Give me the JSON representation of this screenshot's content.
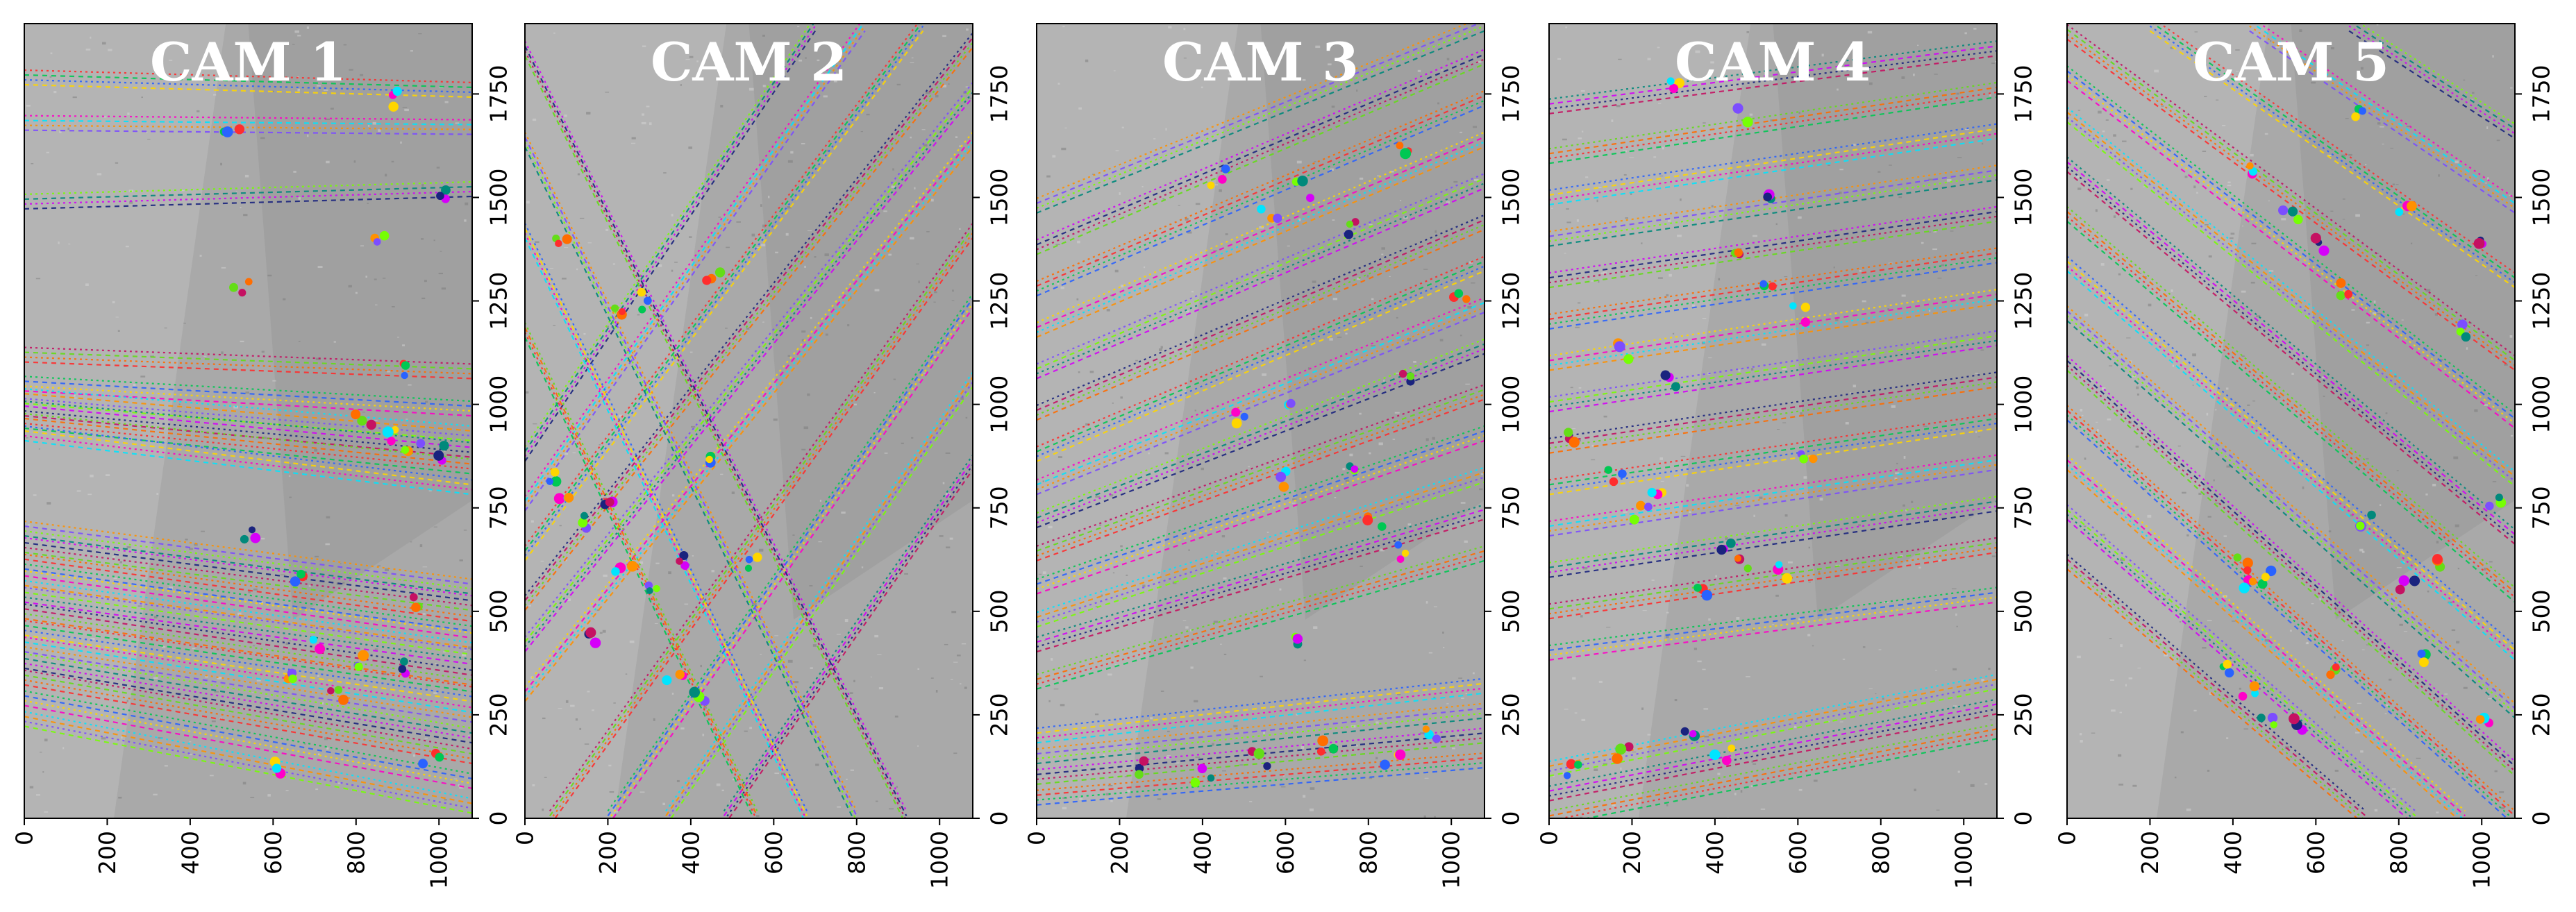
{
  "chart_data": [
    {
      "type": "scatter",
      "title": "CAM 1",
      "xlim": [
        0,
        1080
      ],
      "ylim": [
        0,
        1920
      ],
      "xticks": [
        0,
        200,
        400,
        600,
        800,
        1000
      ],
      "yticks": [
        0,
        250,
        500,
        750,
        1000,
        1250,
        1500,
        1750
      ],
      "tracks": [
        {
          "x0": 0,
          "y0": 1790,
          "x1": 1080,
          "y1": 1760
        },
        {
          "x0": 0,
          "y0": 1680,
          "x1": 1080,
          "y1": 1670
        },
        {
          "x0": 0,
          "y0": 1490,
          "x1": 1080,
          "y1": 1520
        },
        {
          "x0": 0,
          "y0": 1120,
          "x1": 1080,
          "y1": 1080
        },
        {
          "x0": 0,
          "y0": 1050,
          "x1": 1080,
          "y1": 990
        },
        {
          "x0": 0,
          "y0": 1020,
          "x1": 1080,
          "y1": 930
        },
        {
          "x0": 0,
          "y0": 990,
          "x1": 1080,
          "y1": 890
        },
        {
          "x0": 0,
          "y0": 960,
          "x1": 1080,
          "y1": 850
        },
        {
          "x0": 0,
          "y0": 930,
          "x1": 1080,
          "y1": 800
        },
        {
          "x0": 0,
          "y0": 700,
          "x1": 1080,
          "y1": 560
        },
        {
          "x0": 0,
          "y0": 660,
          "x1": 1080,
          "y1": 520
        },
        {
          "x0": 0,
          "y0": 620,
          "x1": 1080,
          "y1": 470
        },
        {
          "x0": 0,
          "y0": 580,
          "x1": 1080,
          "y1": 430
        },
        {
          "x0": 0,
          "y0": 540,
          "x1": 1080,
          "y1": 390
        },
        {
          "x0": 0,
          "y0": 500,
          "x1": 1080,
          "y1": 340
        },
        {
          "x0": 0,
          "y0": 460,
          "x1": 1080,
          "y1": 300
        },
        {
          "x0": 0,
          "y0": 420,
          "x1": 1080,
          "y1": 250
        },
        {
          "x0": 0,
          "y0": 380,
          "x1": 1080,
          "y1": 200
        },
        {
          "x0": 0,
          "y0": 340,
          "x1": 1080,
          "y1": 150
        },
        {
          "x0": 0,
          "y0": 290,
          "x1": 1080,
          "y1": 90
        },
        {
          "x0": 0,
          "y0": 240,
          "x1": 1080,
          "y1": 30
        }
      ],
      "points": [
        {
          "x": 500,
          "y": 1680
        },
        {
          "x": 880,
          "y": 1740
        },
        {
          "x": 860,
          "y": 1400
        },
        {
          "x": 1020,
          "y": 1500
        },
        {
          "x": 520,
          "y": 1290
        },
        {
          "x": 900,
          "y": 1080
        },
        {
          "x": 880,
          "y": 920
        },
        {
          "x": 940,
          "y": 900
        },
        {
          "x": 1000,
          "y": 880
        },
        {
          "x": 820,
          "y": 960
        },
        {
          "x": 660,
          "y": 590
        },
        {
          "x": 700,
          "y": 420
        },
        {
          "x": 800,
          "y": 380
        },
        {
          "x": 900,
          "y": 360
        },
        {
          "x": 760,
          "y": 300
        },
        {
          "x": 980,
          "y": 140
        },
        {
          "x": 600,
          "y": 130
        },
        {
          "x": 640,
          "y": 340
        },
        {
          "x": 540,
          "y": 690
        },
        {
          "x": 960,
          "y": 520
        }
      ]
    },
    {
      "type": "scatter",
      "title": "CAM 2",
      "xlim": [
        0,
        1080
      ],
      "ylim": [
        0,
        1920
      ],
      "xticks": [
        0,
        200,
        400,
        600,
        800,
        1000
      ],
      "yticks": [
        0,
        250,
        500,
        750,
        1000,
        1250,
        1500,
        1750
      ],
      "tracks": [
        {
          "x0": 0,
          "y0": 300,
          "x1": 1080,
          "y1": 1640
        },
        {
          "x0": 0,
          "y0": 420,
          "x1": 1080,
          "y1": 1760
        },
        {
          "x0": 0,
          "y0": 520,
          "x1": 1080,
          "y1": 1880
        },
        {
          "x0": 0,
          "y0": 640,
          "x1": 960,
          "y1": 1920
        },
        {
          "x0": 0,
          "y0": 760,
          "x1": 820,
          "y1": 1920
        },
        {
          "x0": 0,
          "y0": 880,
          "x1": 700,
          "y1": 1920
        },
        {
          "x0": 60,
          "y0": 0,
          "x1": 1080,
          "y1": 1420
        },
        {
          "x0": 200,
          "y0": 0,
          "x1": 1080,
          "y1": 1250
        },
        {
          "x0": 340,
          "y0": 0,
          "x1": 1080,
          "y1": 1060
        },
        {
          "x0": 480,
          "y0": 0,
          "x1": 1080,
          "y1": 860
        },
        {
          "x0": 0,
          "y0": 1180,
          "x1": 560,
          "y1": 0
        },
        {
          "x0": 0,
          "y0": 1420,
          "x1": 680,
          "y1": 0
        },
        {
          "x0": 0,
          "y0": 1640,
          "x1": 800,
          "y1": 0
        },
        {
          "x0": 0,
          "y0": 1860,
          "x1": 920,
          "y1": 0
        }
      ],
      "points": [
        {
          "x": 60,
          "y": 820
        },
        {
          "x": 100,
          "y": 780
        },
        {
          "x": 140,
          "y": 720
        },
        {
          "x": 200,
          "y": 760
        },
        {
          "x": 230,
          "y": 1230
        },
        {
          "x": 300,
          "y": 1250
        },
        {
          "x": 240,
          "y": 600
        },
        {
          "x": 320,
          "y": 560
        },
        {
          "x": 380,
          "y": 620
        },
        {
          "x": 460,
          "y": 1300
        },
        {
          "x": 540,
          "y": 620
        },
        {
          "x": 360,
          "y": 330
        },
        {
          "x": 420,
          "y": 300
        },
        {
          "x": 160,
          "y": 440
        },
        {
          "x": 80,
          "y": 1400
        },
        {
          "x": 440,
          "y": 860
        }
      ]
    },
    {
      "type": "scatter",
      "title": "CAM 3",
      "xlim": [
        0,
        1080
      ],
      "ylim": [
        0,
        1920
      ],
      "xticks": [
        0,
        200,
        400,
        600,
        800,
        1000
      ],
      "yticks": [
        0,
        250,
        500,
        750,
        1000,
        1250,
        1500,
        1750
      ],
      "tracks": [
        {
          "x0": 0,
          "y0": 1480,
          "x1": 1080,
          "y1": 1920
        },
        {
          "x0": 0,
          "y0": 1380,
          "x1": 1080,
          "y1": 1840
        },
        {
          "x0": 0,
          "y0": 1280,
          "x1": 1080,
          "y1": 1740
        },
        {
          "x0": 0,
          "y0": 1180,
          "x1": 1080,
          "y1": 1640
        },
        {
          "x0": 0,
          "y0": 1080,
          "x1": 1080,
          "y1": 1540
        },
        {
          "x0": 0,
          "y0": 980,
          "x1": 1080,
          "y1": 1440
        },
        {
          "x0": 0,
          "y0": 880,
          "x1": 1080,
          "y1": 1340
        },
        {
          "x0": 0,
          "y0": 800,
          "x1": 1080,
          "y1": 1240
        },
        {
          "x0": 0,
          "y0": 720,
          "x1": 1080,
          "y1": 1140
        },
        {
          "x0": 0,
          "y0": 640,
          "x1": 1080,
          "y1": 1030
        },
        {
          "x0": 0,
          "y0": 560,
          "x1": 1080,
          "y1": 930
        },
        {
          "x0": 0,
          "y0": 480,
          "x1": 1080,
          "y1": 830
        },
        {
          "x0": 0,
          "y0": 420,
          "x1": 1080,
          "y1": 740
        },
        {
          "x0": 0,
          "y0": 330,
          "x1": 1080,
          "y1": 640
        },
        {
          "x0": 0,
          "y0": 200,
          "x1": 1080,
          "y1": 320
        },
        {
          "x0": 0,
          "y0": 150,
          "x1": 1080,
          "y1": 260
        },
        {
          "x0": 0,
          "y0": 100,
          "x1": 1080,
          "y1": 200
        },
        {
          "x0": 0,
          "y0": 50,
          "x1": 1080,
          "y1": 140
        }
      ],
      "points": [
        {
          "x": 440,
          "y": 1550
        },
        {
          "x": 560,
          "y": 1460
        },
        {
          "x": 640,
          "y": 1520
        },
        {
          "x": 760,
          "y": 1430
        },
        {
          "x": 880,
          "y": 1620
        },
        {
          "x": 500,
          "y": 960
        },
        {
          "x": 620,
          "y": 1000
        },
        {
          "x": 760,
          "y": 860
        },
        {
          "x": 900,
          "y": 1060
        },
        {
          "x": 820,
          "y": 720
        },
        {
          "x": 880,
          "y": 640
        },
        {
          "x": 600,
          "y": 820
        },
        {
          "x": 620,
          "y": 430
        },
        {
          "x": 540,
          "y": 140
        },
        {
          "x": 700,
          "y": 180
        },
        {
          "x": 860,
          "y": 140
        },
        {
          "x": 960,
          "y": 200
        },
        {
          "x": 400,
          "y": 100
        },
        {
          "x": 260,
          "y": 120
        },
        {
          "x": 1020,
          "y": 1250
        }
      ]
    },
    {
      "type": "scatter",
      "title": "CAM 4",
      "xlim": [
        0,
        1080
      ],
      "ylim": [
        0,
        1920
      ],
      "xticks": [
        0,
        200,
        400,
        600,
        800,
        1000
      ],
      "yticks": [
        0,
        250,
        500,
        750,
        1000,
        1250,
        1500,
        1750
      ],
      "tracks": [
        {
          "x0": 0,
          "y0": 1720,
          "x1": 1080,
          "y1": 1860
        },
        {
          "x0": 0,
          "y0": 1600,
          "x1": 1080,
          "y1": 1760
        },
        {
          "x0": 0,
          "y0": 1500,
          "x1": 1080,
          "y1": 1660
        },
        {
          "x0": 0,
          "y0": 1400,
          "x1": 1080,
          "y1": 1560
        },
        {
          "x0": 0,
          "y0": 1300,
          "x1": 1080,
          "y1": 1460
        },
        {
          "x0": 0,
          "y0": 1200,
          "x1": 1080,
          "y1": 1360
        },
        {
          "x0": 0,
          "y0": 1100,
          "x1": 1080,
          "y1": 1260
        },
        {
          "x0": 0,
          "y0": 1000,
          "x1": 1080,
          "y1": 1160
        },
        {
          "x0": 0,
          "y0": 900,
          "x1": 1080,
          "y1": 1060
        },
        {
          "x0": 0,
          "y0": 800,
          "x1": 1080,
          "y1": 960
        },
        {
          "x0": 0,
          "y0": 700,
          "x1": 1080,
          "y1": 860
        },
        {
          "x0": 0,
          "y0": 600,
          "x1": 1080,
          "y1": 760
        },
        {
          "x0": 0,
          "y0": 500,
          "x1": 1080,
          "y1": 660
        },
        {
          "x0": 0,
          "y0": 400,
          "x1": 1080,
          "y1": 540
        },
        {
          "x0": 0,
          "y0": 120,
          "x1": 1080,
          "y1": 330
        },
        {
          "x0": 0,
          "y0": 60,
          "x1": 1080,
          "y1": 270
        },
        {
          "x0": 0,
          "y0": 0,
          "x1": 1080,
          "y1": 210
        }
      ],
      "points": [
        {
          "x": 300,
          "y": 1780
        },
        {
          "x": 460,
          "y": 1700
        },
        {
          "x": 540,
          "y": 1500
        },
        {
          "x": 440,
          "y": 1380
        },
        {
          "x": 520,
          "y": 1300
        },
        {
          "x": 600,
          "y": 1220
        },
        {
          "x": 180,
          "y": 1130
        },
        {
          "x": 300,
          "y": 1060
        },
        {
          "x": 40,
          "y": 920
        },
        {
          "x": 160,
          "y": 820
        },
        {
          "x": 260,
          "y": 800
        },
        {
          "x": 220,
          "y": 740
        },
        {
          "x": 420,
          "y": 660
        },
        {
          "x": 460,
          "y": 620
        },
        {
          "x": 360,
          "y": 560
        },
        {
          "x": 560,
          "y": 600
        },
        {
          "x": 620,
          "y": 880
        },
        {
          "x": 340,
          "y": 200
        },
        {
          "x": 180,
          "y": 160
        },
        {
          "x": 60,
          "y": 120
        },
        {
          "x": 420,
          "y": 160
        }
      ]
    },
    {
      "type": "scatter",
      "title": "CAM 5",
      "xlim": [
        0,
        1080
      ],
      "ylim": [
        0,
        1920
      ],
      "xticks": [
        0,
        200,
        400,
        600,
        800,
        1000
      ],
      "yticks": [
        0,
        250,
        500,
        750,
        1000,
        1250,
        1500,
        1750
      ],
      "tracks": [
        {
          "x0": 0,
          "y0": 1900,
          "x1": 1080,
          "y1": 1100
        },
        {
          "x0": 0,
          "y0": 1800,
          "x1": 1080,
          "y1": 960
        },
        {
          "x0": 0,
          "y0": 1700,
          "x1": 1080,
          "y1": 820
        },
        {
          "x0": 0,
          "y0": 1580,
          "x1": 1080,
          "y1": 680
        },
        {
          "x0": 0,
          "y0": 1460,
          "x1": 1080,
          "y1": 540
        },
        {
          "x0": 0,
          "y0": 1340,
          "x1": 1080,
          "y1": 400
        },
        {
          "x0": 0,
          "y0": 1220,
          "x1": 1080,
          "y1": 260
        },
        {
          "x0": 0,
          "y0": 1100,
          "x1": 1080,
          "y1": 120
        },
        {
          "x0": 0,
          "y0": 980,
          "x1": 1080,
          "y1": 0
        },
        {
          "x0": 0,
          "y0": 860,
          "x1": 960,
          "y1": 0
        },
        {
          "x0": 0,
          "y0": 740,
          "x1": 840,
          "y1": 0
        },
        {
          "x0": 0,
          "y0": 620,
          "x1": 720,
          "y1": 0
        },
        {
          "x0": 200,
          "y0": 1920,
          "x1": 1080,
          "y1": 1300
        },
        {
          "x0": 440,
          "y0": 1920,
          "x1": 1080,
          "y1": 1480
        },
        {
          "x0": 680,
          "y0": 1920,
          "x1": 1080,
          "y1": 1660
        }
      ],
      "points": [
        {
          "x": 460,
          "y": 1560
        },
        {
          "x": 540,
          "y": 1460
        },
        {
          "x": 600,
          "y": 1380
        },
        {
          "x": 660,
          "y": 1280
        },
        {
          "x": 700,
          "y": 1700
        },
        {
          "x": 820,
          "y": 1460
        },
        {
          "x": 940,
          "y": 1180
        },
        {
          "x": 1000,
          "y": 1400
        },
        {
          "x": 420,
          "y": 620
        },
        {
          "x": 480,
          "y": 580
        },
        {
          "x": 440,
          "y": 560
        },
        {
          "x": 720,
          "y": 720
        },
        {
          "x": 820,
          "y": 560
        },
        {
          "x": 900,
          "y": 620
        },
        {
          "x": 380,
          "y": 360
        },
        {
          "x": 440,
          "y": 300
        },
        {
          "x": 480,
          "y": 240
        },
        {
          "x": 560,
          "y": 220
        },
        {
          "x": 640,
          "y": 360
        },
        {
          "x": 860,
          "y": 380
        },
        {
          "x": 1000,
          "y": 240
        },
        {
          "x": 1040,
          "y": 760
        }
      ]
    }
  ],
  "palette": [
    "#ff2d2d",
    "#00c853",
    "#2962ff",
    "#ffd600",
    "#ff00c8",
    "#00e5ff",
    "#ff9100",
    "#7c4dff",
    "#76ff03",
    "#00897b",
    "#d500f9",
    "#1a237e",
    "#c51162",
    "#64dd17",
    "#ff6d00"
  ]
}
